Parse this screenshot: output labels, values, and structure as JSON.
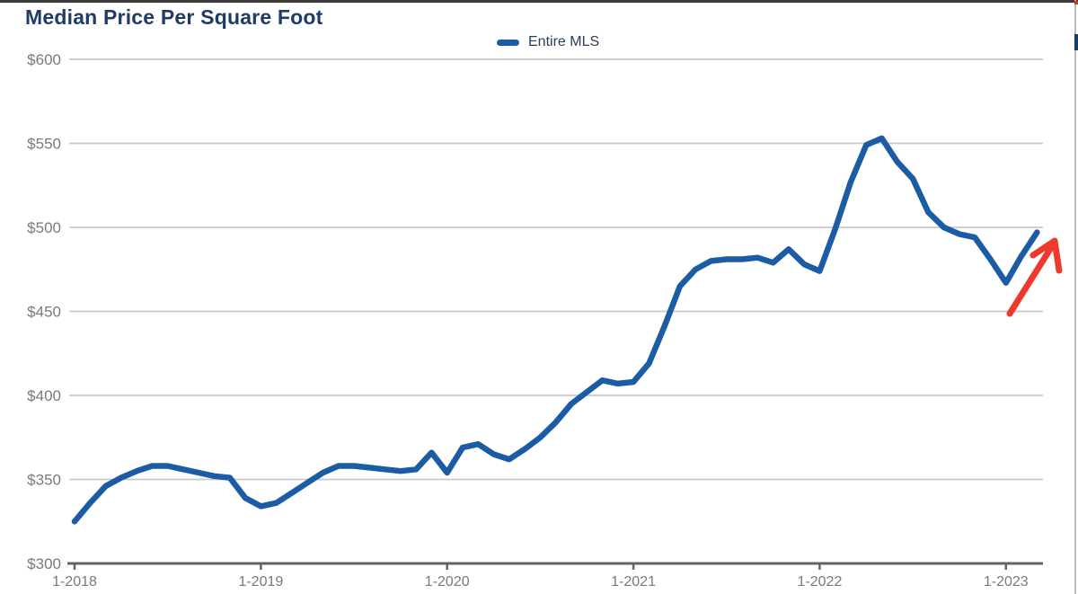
{
  "page": {
    "title": "Median Price Per Square Foot"
  },
  "legend": {
    "label": "Entire MLS"
  },
  "colors": {
    "title_text": "#1d3c68",
    "legend_text": "#2d3e55",
    "line": "#1b5ca4",
    "grid": "#c9c9c9",
    "axis": "#646464",
    "tick_label": "#7a7a7a",
    "arrow": "#ee3a2c"
  },
  "chart_data": {
    "type": "line",
    "title": "Median Price Per Square Foot",
    "xlabel": "",
    "ylabel": "",
    "ylim": [
      300,
      600
    ],
    "grid": "horizontal",
    "legend_position": "top-center",
    "x_tick_labels": [
      "1-2018",
      "1-2019",
      "1-2020",
      "1-2021",
      "1-2022",
      "1-2023"
    ],
    "y_ticks": [
      300,
      350,
      400,
      450,
      500,
      550,
      600
    ],
    "y_tick_labels": [
      "$300",
      "$350",
      "$400",
      "$450",
      "$500",
      "$550",
      "$600"
    ],
    "x": [
      "1-2018",
      "2-2018",
      "3-2018",
      "4-2018",
      "5-2018",
      "6-2018",
      "7-2018",
      "8-2018",
      "9-2018",
      "10-2018",
      "11-2018",
      "12-2018",
      "1-2019",
      "2-2019",
      "3-2019",
      "4-2019",
      "5-2019",
      "6-2019",
      "7-2019",
      "8-2019",
      "9-2019",
      "10-2019",
      "11-2019",
      "12-2019",
      "1-2020",
      "2-2020",
      "3-2020",
      "4-2020",
      "5-2020",
      "6-2020",
      "7-2020",
      "8-2020",
      "9-2020",
      "10-2020",
      "11-2020",
      "12-2020",
      "1-2021",
      "2-2021",
      "3-2021",
      "4-2021",
      "5-2021",
      "6-2021",
      "7-2021",
      "8-2021",
      "9-2021",
      "10-2021",
      "11-2021",
      "12-2021",
      "1-2022",
      "2-2022",
      "3-2022",
      "4-2022",
      "5-2022",
      "6-2022",
      "7-2022",
      "8-2022",
      "9-2022",
      "10-2022",
      "11-2022",
      "12-2022",
      "1-2023",
      "2-2023",
      "3-2023"
    ],
    "series": [
      {
        "name": "Entire MLS",
        "color": "#1b5ca4",
        "values": [
          325,
          336,
          346,
          351,
          355,
          358,
          358,
          356,
          354,
          352,
          351,
          339,
          334,
          336,
          342,
          348,
          354,
          358,
          358,
          357,
          356,
          355,
          356,
          366,
          354,
          369,
          371,
          365,
          362,
          368,
          375,
          384,
          395,
          402,
          409,
          407,
          408,
          419,
          441,
          465,
          475,
          480,
          481,
          481,
          482,
          479,
          487,
          478,
          474,
          499,
          527,
          549,
          553,
          539,
          529,
          509,
          500,
          496,
          494,
          481,
          467,
          483,
          497
        ]
      }
    ],
    "annotations": [
      {
        "type": "hand-drawn-arrow",
        "color": "#ee3a2c",
        "description": "Red upward arrow emphasizing the price rebound at the end of the series",
        "from": {
          "x": "1-2023",
          "value": 450
        },
        "to": {
          "x": "3-2023",
          "value": 495
        }
      }
    ]
  }
}
